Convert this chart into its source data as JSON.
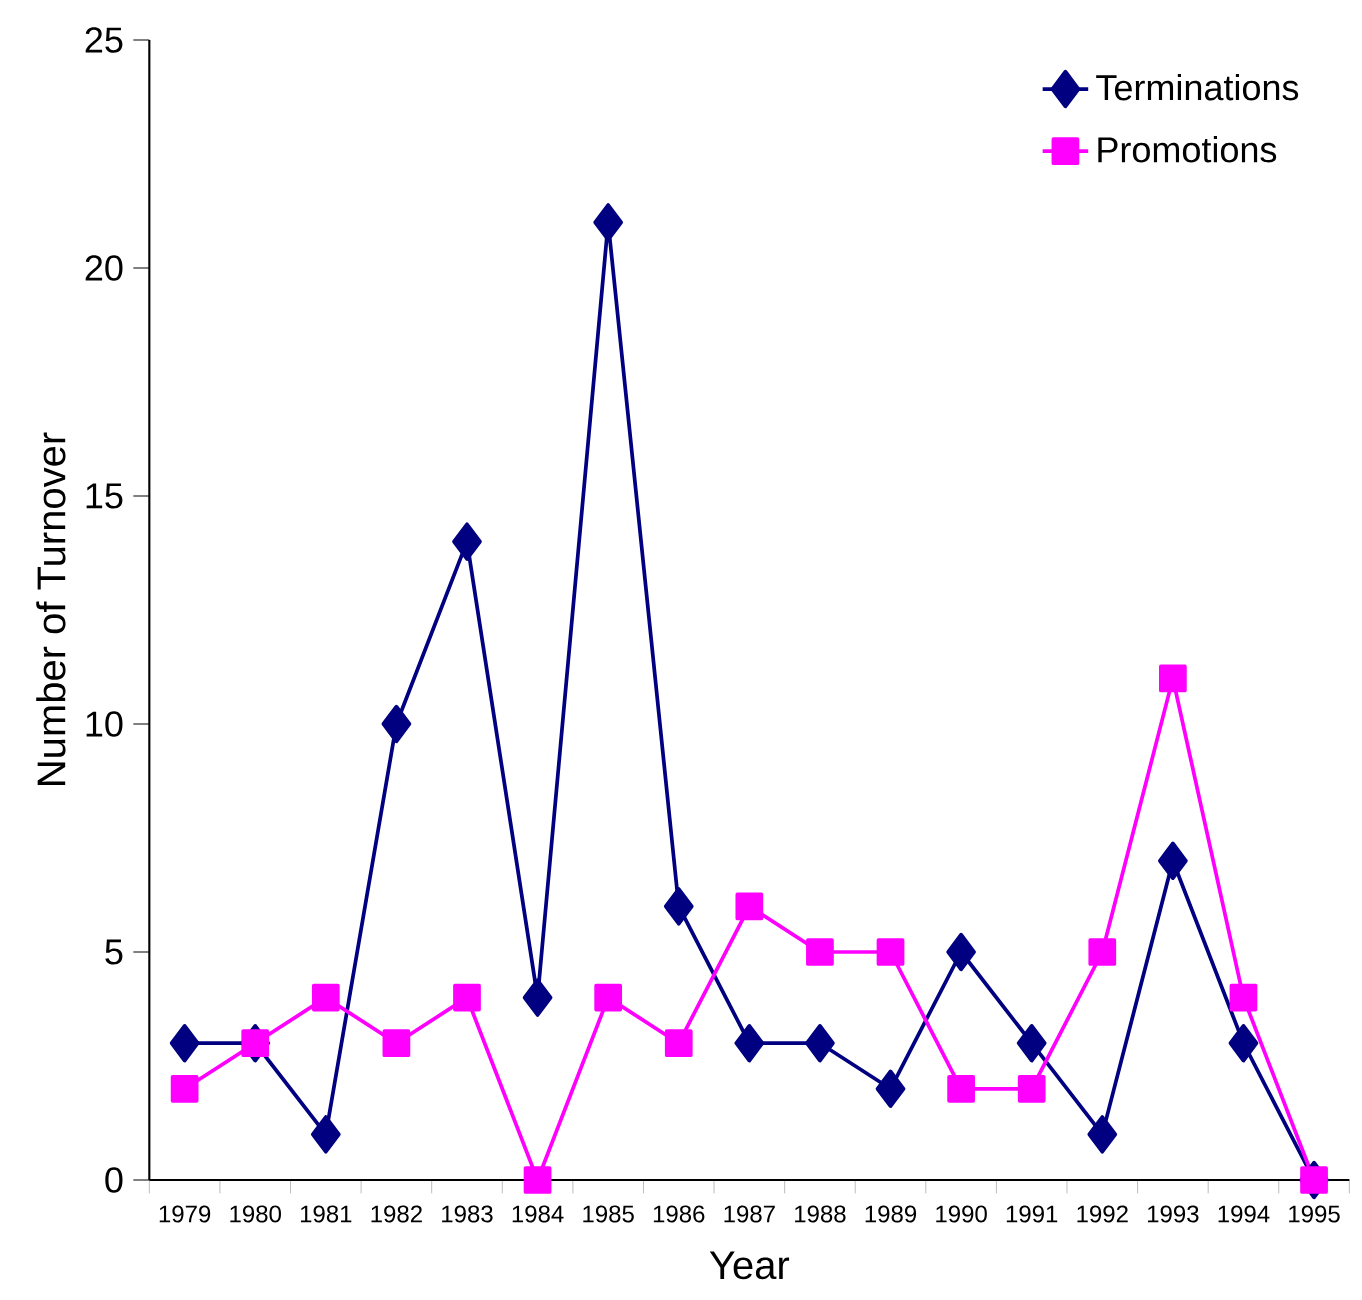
{
  "chart_data": {
    "type": "line",
    "xlabel": "Year",
    "ylabel": "Number of Turnover",
    "categories": [
      "1979",
      "1980",
      "1981",
      "1982",
      "1983",
      "1984",
      "1985",
      "1986",
      "1987",
      "1988",
      "1989",
      "1990",
      "1991",
      "1992",
      "1993",
      "1994",
      "1995"
    ],
    "series": [
      {
        "name": "Terminations",
        "color": "#000080",
        "marker": "diamond",
        "values": [
          3,
          3,
          1,
          10,
          14,
          4,
          21,
          6,
          3,
          3,
          2,
          5,
          3,
          1,
          7,
          3,
          0
        ]
      },
      {
        "name": "Promotions",
        "color": "#ff00ff",
        "marker": "square",
        "values": [
          2,
          3,
          4,
          3,
          4,
          0,
          4,
          3,
          6,
          5,
          5,
          2,
          2,
          5,
          11,
          4,
          0
        ]
      }
    ],
    "ylim": [
      0,
      25
    ],
    "yticks": [
      0,
      5,
      10,
      15,
      20,
      25
    ],
    "grid": false,
    "legend": "top right",
    "line_style": "solid"
  }
}
